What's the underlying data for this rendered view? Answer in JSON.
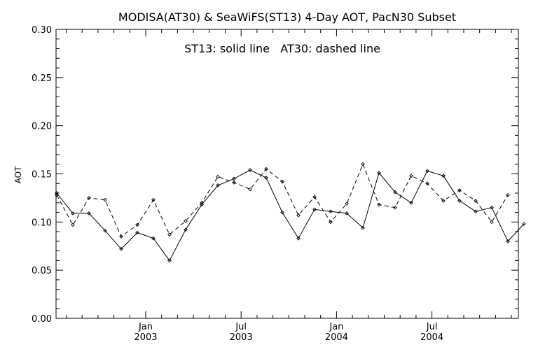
{
  "chart_data": {
    "type": "line",
    "title": "MODISA(AT30) & SeaWiFS(ST13) 4-Day AOT, PacN30 Subset",
    "annotation": "ST13: solid line   AT30: dashed line",
    "ylabel": "AOT",
    "xlabel": "",
    "ylim": [
      0.0,
      0.3
    ],
    "y_ticks": [
      "0.00",
      "0.05",
      "0.10",
      "0.15",
      "0.20",
      "0.25",
      "0.30"
    ],
    "x_tick_labels": [
      {
        "month": "Jan",
        "year": "2003"
      },
      {
        "month": "Jul",
        "year": "2003"
      },
      {
        "month": "Jan",
        "year": "2004"
      },
      {
        "month": "Jul",
        "year": "2004"
      }
    ],
    "grid": false,
    "series": [
      {
        "name": "ST13",
        "line_style": "solid",
        "values": [
          0.13,
          0.109,
          0.109,
          0.091,
          0.072,
          0.089,
          0.083,
          0.06,
          0.092,
          0.118,
          0.138,
          0.145,
          0.154,
          0.146,
          0.11,
          0.083,
          0.113,
          0.111,
          0.109,
          0.094,
          0.151,
          0.131,
          0.12,
          0.153,
          0.148,
          0.122,
          0.111,
          0.115,
          0.08,
          0.098
        ]
      },
      {
        "name": "AT30",
        "line_style": "dashed",
        "values": [
          0.128,
          0.097,
          0.125,
          0.123,
          0.085,
          0.097,
          0.123,
          0.087,
          0.101,
          0.12,
          0.147,
          0.141,
          0.134,
          0.155,
          0.142,
          0.107,
          0.126,
          0.1,
          0.119,
          0.16,
          0.118,
          0.115,
          0.148,
          0.14,
          0.122,
          0.133,
          0.122,
          0.1,
          0.128
        ]
      }
    ]
  }
}
